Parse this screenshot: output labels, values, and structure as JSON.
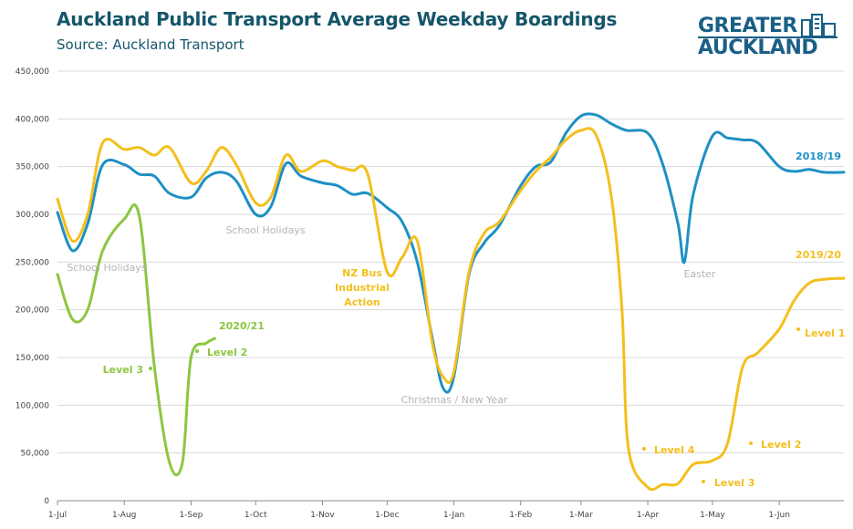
{
  "header": {
    "title": "Auckland Public Transport Average Weekday Boardings",
    "subtitle": "Source: Auckland Transport"
  },
  "logo": {
    "line1": "GREATER",
    "line2": "AUCKLAND",
    "color": "#1a5f86"
  },
  "chart_data": {
    "type": "line",
    "title": "Auckland Public Transport Average Weekday Boardings",
    "subtitle": "Source: Auckland Transport",
    "xlabel": "",
    "ylabel": "",
    "ylim": [
      0,
      450000
    ],
    "yticks": [
      0,
      50000,
      100000,
      150000,
      200000,
      250000,
      300000,
      350000,
      400000,
      450000
    ],
    "ytick_labels": [
      "0",
      "50,000",
      "100,000",
      "150,000",
      "200,000",
      "250,000",
      "300,000",
      "350,000",
      "400,000",
      "450,000"
    ],
    "xlim": [
      "1-Jul",
      "end-Jun"
    ],
    "xticks": [
      "1-Jul",
      "1-Aug",
      "1-Sep",
      "1-Oct",
      "1-Nov",
      "1-Dec",
      "1-Jan",
      "1-Feb",
      "1-Mar",
      "1-Apr",
      "1-May",
      "1-Jun"
    ],
    "grid": "horizontal",
    "series": [
      {
        "name": "2018/19",
        "color": "#1e90c3",
        "points": [
          [
            "1-Jul",
            302000
          ],
          [
            "8-Jul",
            262000
          ],
          [
            "15-Jul",
            290000
          ],
          [
            "22-Jul",
            352000
          ],
          [
            "1-Aug",
            352000
          ],
          [
            "8-Aug",
            342000
          ],
          [
            "15-Aug",
            340000
          ],
          [
            "22-Aug",
            322000
          ],
          [
            "1-Sep",
            318000
          ],
          [
            "8-Sep",
            338000
          ],
          [
            "15-Sep",
            344000
          ],
          [
            "22-Sep",
            335000
          ],
          [
            "1-Oct",
            300000
          ],
          [
            "8-Oct",
            308000
          ],
          [
            "15-Oct",
            353000
          ],
          [
            "22-Oct",
            340000
          ],
          [
            "1-Nov",
            333000
          ],
          [
            "8-Nov",
            330000
          ],
          [
            "15-Nov",
            321000
          ],
          [
            "22-Nov",
            322000
          ],
          [
            "1-Dec",
            307000
          ],
          [
            "8-Dec",
            292000
          ],
          [
            "15-Dec",
            250000
          ],
          [
            "22-Dec",
            170000
          ],
          [
            "27-Dec",
            118000
          ],
          [
            "1-Jan",
            130000
          ],
          [
            "8-Jan",
            237000
          ],
          [
            "15-Jan",
            270000
          ],
          [
            "22-Jan",
            288000
          ],
          [
            "1-Feb",
            330000
          ],
          [
            "8-Feb",
            350000
          ],
          [
            "15-Feb",
            355000
          ],
          [
            "22-Feb",
            385000
          ],
          [
            "1-Mar",
            403000
          ],
          [
            "8-Mar",
            404000
          ],
          [
            "15-Mar",
            395000
          ],
          [
            "22-Mar",
            388000
          ],
          [
            "1-Apr",
            385000
          ],
          [
            "8-Apr",
            352000
          ],
          [
            "15-Apr",
            290000
          ],
          [
            "18-Apr",
            250000
          ],
          [
            "22-Apr",
            320000
          ],
          [
            "1-May",
            382000
          ],
          [
            "8-May",
            380000
          ],
          [
            "15-May",
            378000
          ],
          [
            "22-May",
            375000
          ],
          [
            "1-Jun",
            350000
          ],
          [
            "8-Jun",
            345000
          ],
          [
            "15-Jun",
            347000
          ],
          [
            "22-Jun",
            344000
          ],
          [
            "end-Jun",
            344000
          ]
        ]
      },
      {
        "name": "2019/20",
        "color": "#f4bf1d",
        "points": [
          [
            "1-Jul",
            316000
          ],
          [
            "8-Jul",
            272000
          ],
          [
            "15-Jul",
            300000
          ],
          [
            "22-Jul",
            375000
          ],
          [
            "1-Aug",
            368000
          ],
          [
            "8-Aug",
            370000
          ],
          [
            "15-Aug",
            362000
          ],
          [
            "22-Aug",
            370000
          ],
          [
            "1-Sep",
            333000
          ],
          [
            "8-Sep",
            345000
          ],
          [
            "15-Sep",
            370000
          ],
          [
            "22-Sep",
            352000
          ],
          [
            "1-Oct",
            312000
          ],
          [
            "8-Oct",
            318000
          ],
          [
            "15-Oct",
            362000
          ],
          [
            "22-Oct",
            345000
          ],
          [
            "1-Nov",
            356000
          ],
          [
            "8-Nov",
            350000
          ],
          [
            "15-Nov",
            346000
          ],
          [
            "22-Nov",
            342000
          ],
          [
            "1-Dec",
            240000
          ],
          [
            "8-Dec",
            255000
          ],
          [
            "15-Dec",
            272000
          ],
          [
            "22-Dec",
            165000
          ],
          [
            "27-Dec",
            130000
          ],
          [
            "1-Jan",
            135000
          ],
          [
            "8-Jan",
            240000
          ],
          [
            "15-Jan",
            280000
          ],
          [
            "22-Jan",
            292000
          ],
          [
            "1-Feb",
            325000
          ],
          [
            "8-Feb",
            345000
          ],
          [
            "15-Feb",
            360000
          ],
          [
            "22-Feb",
            378000
          ],
          [
            "1-Mar",
            388000
          ],
          [
            "8-Mar",
            383000
          ],
          [
            "15-Mar",
            320000
          ],
          [
            "20-Mar",
            200000
          ],
          [
            "23-Mar",
            55000
          ],
          [
            "1-Apr",
            14000
          ],
          [
            "8-Apr",
            17000
          ],
          [
            "15-Apr",
            18000
          ],
          [
            "22-Apr",
            38000
          ],
          [
            "1-May",
            42000
          ],
          [
            "8-May",
            60000
          ],
          [
            "15-May",
            140000
          ],
          [
            "22-May",
            155000
          ],
          [
            "1-Jun",
            180000
          ],
          [
            "8-Jun",
            210000
          ],
          [
            "15-Jun",
            228000
          ],
          [
            "22-Jun",
            232000
          ],
          [
            "end-Jun",
            233000
          ]
        ]
      },
      {
        "name": "2020/21",
        "color": "#8cc63f",
        "points": [
          [
            "1-Jul",
            237000
          ],
          [
            "8-Jul",
            190000
          ],
          [
            "15-Jul",
            200000
          ],
          [
            "22-Jul",
            262000
          ],
          [
            "1-Aug",
            295000
          ],
          [
            "8-Aug",
            298000
          ],
          [
            "15-Aug",
            140000
          ],
          [
            "22-Aug",
            40000
          ],
          [
            "28-Aug",
            40000
          ],
          [
            "1-Sep",
            150000
          ],
          [
            "8-Sep",
            165000
          ],
          [
            "12-Sep",
            170000
          ]
        ]
      }
    ],
    "annotations": [
      {
        "text": "School Holidays",
        "kind": "period",
        "color": "#b5b5b5"
      },
      {
        "text": "School Holidays",
        "kind": "period",
        "color": "#b5b5b5"
      },
      {
        "text": "NZ Bus",
        "kind": "event",
        "color": "#f4bf1d"
      },
      {
        "text": "Industrial",
        "kind": "event",
        "color": "#f4bf1d"
      },
      {
        "text": "Action",
        "kind": "event",
        "color": "#f4bf1d"
      },
      {
        "text": "Christmas / New Year",
        "kind": "period",
        "color": "#b5b5b5"
      },
      {
        "text": "Easter",
        "kind": "period",
        "color": "#b5b5b5"
      },
      {
        "text": "Level 3",
        "kind": "alert",
        "color": "#8cc63f"
      },
      {
        "text": "Level 2",
        "kind": "alert",
        "color": "#8cc63f"
      },
      {
        "text": "Level 4",
        "kind": "alert",
        "color": "#f4bf1d"
      },
      {
        "text": "Level 3",
        "kind": "alert",
        "color": "#f4bf1d"
      },
      {
        "text": "Level 2",
        "kind": "alert",
        "color": "#f4bf1d"
      },
      {
        "text": "Level 1",
        "kind": "alert",
        "color": "#f4bf1d"
      }
    ]
  }
}
